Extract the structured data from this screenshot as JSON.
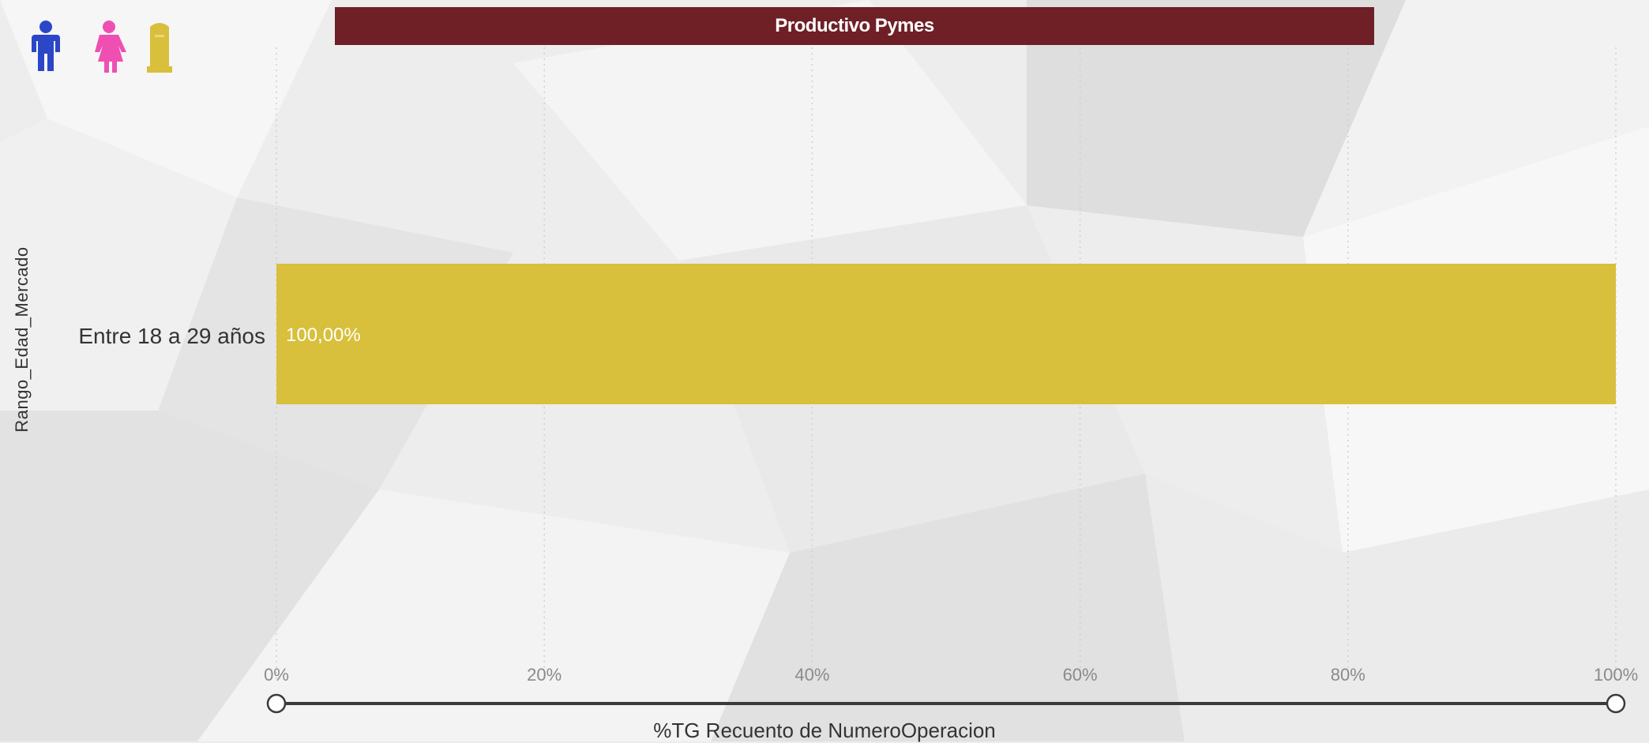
{
  "chart_data": {
    "type": "bar",
    "orientation": "horizontal",
    "title": "Productivo Pymes",
    "ylabel": "Rango_Edad_Mercado",
    "xlabel": "%TG Recuento de NumeroOperacion",
    "categories": [
      "Entre 18 a 29 años"
    ],
    "series": [
      {
        "values": [
          100
        ],
        "data_labels": [
          "100,00%"
        ],
        "color": "#d8bf3c"
      }
    ],
    "x_ticks": [
      "0%",
      "20%",
      "40%",
      "60%",
      "80%",
      "100%"
    ],
    "xlim": [
      0,
      100
    ],
    "grid": "vertical dotted",
    "legend": "top-left icons"
  },
  "legend_icons": [
    {
      "name": "male-icon",
      "color": "#2c46c8"
    },
    {
      "name": "female-icon",
      "color": "#ef4fb3"
    },
    {
      "name": "unknown-icon",
      "color": "#d8bf3c"
    }
  ],
  "colors": {
    "title_bar": "#6e2026",
    "bar": "#d8bf3c",
    "frame": "#6b2c2c"
  }
}
